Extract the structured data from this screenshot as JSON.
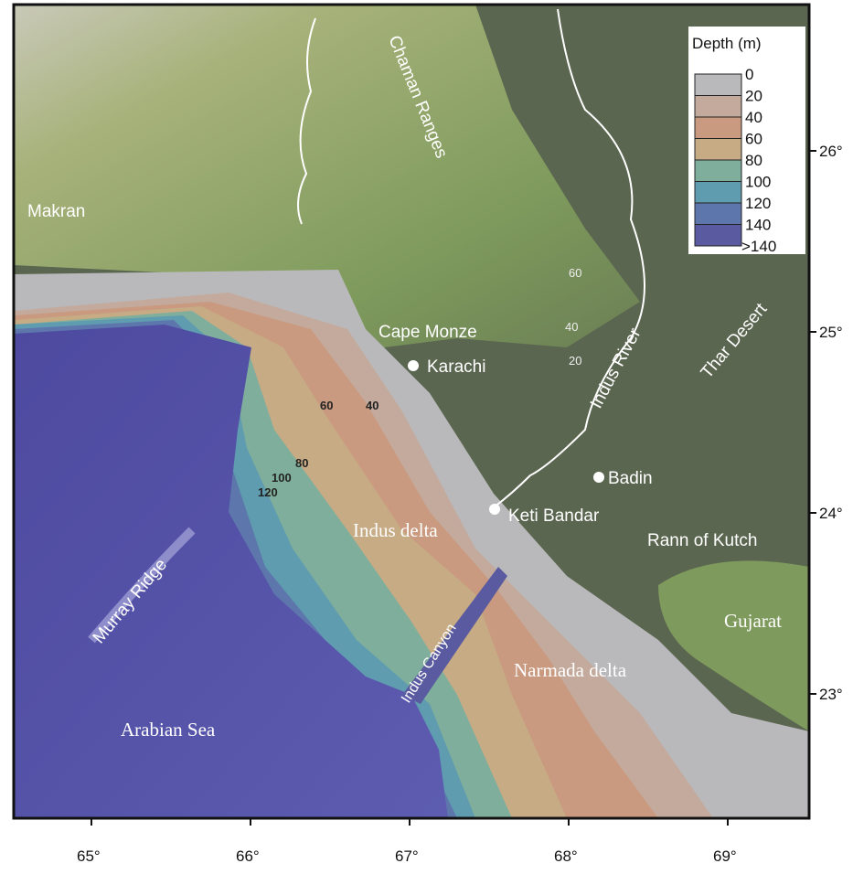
{
  "legend": {
    "title": "Depth (m)",
    "labels": [
      "0",
      "20",
      "40",
      "60",
      "80",
      "100",
      "120",
      "140",
      ">140"
    ],
    "colors": [
      "#b9b9bb",
      "#c4aa9c",
      "#c99a80",
      "#c6ab85",
      "#7fae9c",
      "#5f9cb0",
      "#5d77ad",
      "#5a5aa0"
    ]
  },
  "places": {
    "makran": "Makran",
    "chaman": "Chaman Ranges",
    "cape_monze": "Cape Monze",
    "karachi": "Karachi",
    "indus_river": "Indus River",
    "thar": "Thar Desert",
    "badin": "Badin",
    "keti_bandar": "Keti Bandar",
    "rann": "Rann of Kutch",
    "gujarat": "Gujarat",
    "indus_delta": "Indus delta",
    "narmada_delta": "Narmada delta",
    "indus_canyon": "Indus Canyon",
    "murray_ridge": "Murray Ridge",
    "arabian_sea": "Arabian Sea"
  },
  "contour_labels": {
    "land": [
      "60",
      "40",
      "20"
    ],
    "shelf": [
      "60",
      "40",
      "80",
      "100",
      "120"
    ]
  },
  "axes": {
    "longitude": [
      "65°",
      "66°",
      "67°",
      "68°",
      "69°"
    ],
    "latitude": [
      "26°",
      "25°",
      "24°",
      "23°"
    ]
  },
  "colors": {
    "land": "#5b6650",
    "mountains": "#8faa6a",
    "sea": "#5a58a8",
    "shelf_edge": "#b8b8ba"
  }
}
